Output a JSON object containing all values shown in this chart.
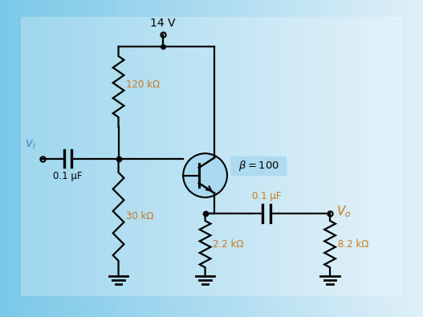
{
  "bg_color": "#c5e5f5",
  "wire_color": "#000000",
  "vi_color": "#4a86c8",
  "vo_color": "#c87820",
  "beta_label_color": "#000000",
  "beta_box_color": "#a8d8f0",
  "transistor_circle_color": "#a8d8f0",
  "label_orange": "#c87820",
  "vcc_label": "14 V",
  "r1_label": "120 kΩ",
  "r2_label": "30 kΩ",
  "re_label": "2.2 kΩ",
  "rl_label": "8.2 kΩ",
  "c1_label": "0.1 μF",
  "c2_label": "0.1 μF",
  "beta_label": "β = 100"
}
